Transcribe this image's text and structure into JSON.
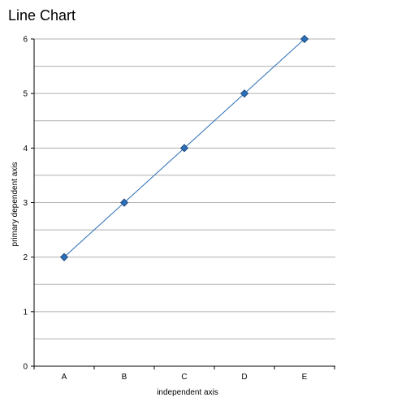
{
  "chart_data": {
    "type": "line",
    "title": "Line Chart",
    "xlabel": "independent axis",
    "ylabel": "primary dependent axis",
    "categories": [
      "A",
      "B",
      "C",
      "D",
      "E"
    ],
    "series": [
      {
        "values": [
          2,
          3,
          4,
          5,
          6
        ]
      }
    ],
    "ylim": [
      0,
      6
    ],
    "y_ticks": [
      "0",
      "1",
      "2",
      "3",
      "4",
      "5",
      "6"
    ],
    "grid": true,
    "line_color": "#2a6db5",
    "marker_color": "#2a6fb8",
    "marker": "diamond"
  }
}
